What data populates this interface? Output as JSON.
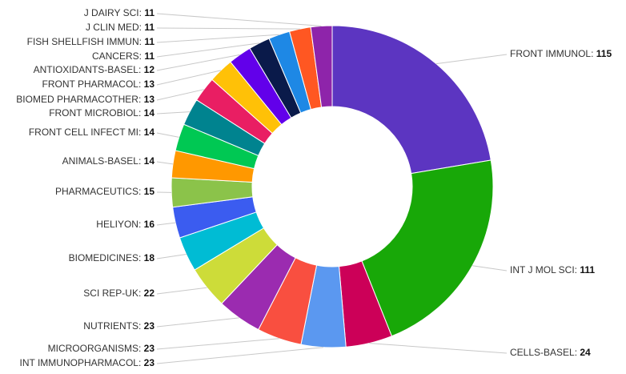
{
  "chart_data": {
    "type": "pie",
    "variant": "donut",
    "legend": "none",
    "grid": false,
    "slices": [
      {
        "label": "FRONT IMMUNOL",
        "value": 115,
        "color": "#5c35c1"
      },
      {
        "label": "INT J MOL SCI",
        "value": 111,
        "color": "#18a808"
      },
      {
        "label": "CELLS-BASEL",
        "value": 24,
        "color": "#cc0058"
      },
      {
        "label": "INT IMMUNOPHARMACOL",
        "value": 23,
        "color": "#5b98f0"
      },
      {
        "label": "MICROORGANISMS",
        "value": 23,
        "color": "#f94f40"
      },
      {
        "label": "NUTRIENTS",
        "value": 23,
        "color": "#9b2bb0"
      },
      {
        "label": "SCI REP-UK",
        "value": 22,
        "color": "#cddc39"
      },
      {
        "label": "BIOMEDICINES",
        "value": 18,
        "color": "#00bcd4"
      },
      {
        "label": "HELIYON",
        "value": 16,
        "color": "#3b5cf0"
      },
      {
        "label": "PHARMACEUTICS",
        "value": 15,
        "color": "#8bc34a"
      },
      {
        "label": "ANIMALS-BASEL",
        "value": 14,
        "color": "#ff9800"
      },
      {
        "label": "FRONT CELL INFECT MI",
        "value": 14,
        "color": "#00c853"
      },
      {
        "label": "FRONT MICROBIOL",
        "value": 14,
        "color": "#00838f"
      },
      {
        "label": "BIOMED PHARMACOTHER",
        "value": 13,
        "color": "#e91e63"
      },
      {
        "label": "FRONT PHARMACOL",
        "value": 13,
        "color": "#ffc107"
      },
      {
        "label": "ANTIOXIDANTS-BASEL",
        "value": 12,
        "color": "#6200ea"
      },
      {
        "label": "CANCERS",
        "value": 11,
        "color": "#0a1a4a"
      },
      {
        "label": "FISH SHELLFISH IMMUN",
        "value": 11,
        "color": "#1e88e5"
      },
      {
        "label": "J CLIN MED",
        "value": 11,
        "color": "#ff5722"
      },
      {
        "label": "J DAIRY SCI",
        "value": 11,
        "color": "#8e24aa"
      }
    ]
  }
}
